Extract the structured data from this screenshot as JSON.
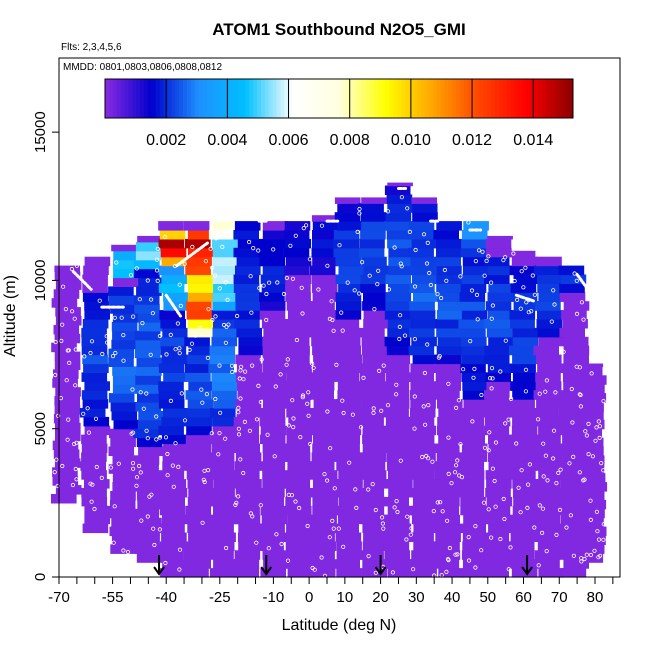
{
  "chart_data": {
    "type": "heatmap",
    "title": "ATOM1 Southbound N2O5_GMI",
    "subtitle_flights": "Flts: 2,3,4,5,6",
    "subtitle_dates": "MMDD: 0801,0803,0806,0808,0812",
    "xlabel": "Latitude (deg N)",
    "ylabel": "Altitude (m)",
    "xlim": [
      -70,
      87
    ],
    "ylim": [
      0,
      17500
    ],
    "x_ticks": [
      -70,
      -55,
      -40,
      -25,
      -10,
      0,
      10,
      20,
      30,
      40,
      50,
      60,
      70,
      80
    ],
    "x_minor_ticks": [
      -65,
      -60,
      -50,
      -45,
      -35,
      -30,
      -20,
      -15,
      -5,
      5,
      15,
      25,
      35,
      45,
      55,
      65,
      75,
      85
    ],
    "y_ticks": [
      0,
      5000,
      10000,
      15000
    ],
    "colorbar": {
      "range": [
        0,
        0.0153
      ],
      "ticks": [
        "0.002",
        "0.004",
        "0.006",
        "0.008",
        "0.010",
        "0.012",
        "0.014"
      ],
      "colors": [
        "#8a2be2",
        "#0000cd",
        "#1e90ff",
        "#00bfff",
        "#ffffff",
        "#ffffe0",
        "#ffff00",
        "#ffa500",
        "#ff4500",
        "#ff0000",
        "#8b0000"
      ]
    },
    "arrows_lat": [
      -42,
      -12,
      20,
      61
    ],
    "columns": [
      {
        "lat": -68,
        "top": 10500,
        "low": 2500,
        "cores": []
      },
      {
        "lat": -60,
        "top": 10800,
        "low": 1500,
        "cores": [
          {
            "y0": 5000,
            "y1": 9500,
            "v": 0.0022
          }
        ]
      },
      {
        "lat": -52,
        "top": 11200,
        "low": 800,
        "cores": [
          {
            "y0": 4800,
            "y1": 9800,
            "v": 0.0025
          },
          {
            "y0": 10000,
            "y1": 10800,
            "v": 0.0055
          }
        ]
      },
      {
        "lat": -45,
        "top": 11500,
        "low": 500,
        "cores": [
          {
            "y0": 4200,
            "y1": 10200,
            "v": 0.0024
          },
          {
            "y0": 10200,
            "y1": 11300,
            "v": 0.0052
          }
        ]
      },
      {
        "lat": -38,
        "top": 12000,
        "low": 0,
        "cores": [
          {
            "y0": 4500,
            "y1": 9000,
            "v": 0.0022
          },
          {
            "y0": 9000,
            "y1": 10300,
            "v": 0.0046
          },
          {
            "y0": 10300,
            "y1": 11500,
            "v": 0.0135
          }
        ]
      },
      {
        "lat": -31,
        "top": 12000,
        "low": 0,
        "cores": [
          {
            "y0": 4600,
            "y1": 8000,
            "v": 0.0022
          },
          {
            "y0": 8000,
            "y1": 9800,
            "v": 0.0116
          },
          {
            "y0": 9800,
            "y1": 11700,
            "v": 0.0142
          }
        ]
      },
      {
        "lat": -24,
        "top": 12000,
        "low": 0,
        "cores": [
          {
            "y0": 5000,
            "y1": 9000,
            "v": 0.0028
          },
          {
            "y0": 9000,
            "y1": 11000,
            "v": 0.0058
          },
          {
            "y0": 11000,
            "y1": 12000,
            "v": 0.0072
          }
        ]
      },
      {
        "lat": -17,
        "top": 12000,
        "low": 0,
        "cores": [
          {
            "y0": 7500,
            "y1": 11800,
            "v": 0.0021
          }
        ]
      },
      {
        "lat": -10,
        "top": 12000,
        "low": 0,
        "cores": [
          {
            "y0": 9000,
            "y1": 11500,
            "v": 0.0018
          }
        ]
      },
      {
        "lat": -3,
        "top": 12000,
        "low": 0,
        "cores": [
          {
            "y0": 10000,
            "y1": 11800,
            "v": 0.0016
          }
        ]
      },
      {
        "lat": 4,
        "top": 12200,
        "low": 0,
        "cores": [
          {
            "y0": 10200,
            "y1": 12000,
            "v": 0.0017
          }
        ]
      },
      {
        "lat": 11,
        "top": 12800,
        "low": 0,
        "cores": [
          {
            "y0": 8500,
            "y1": 12600,
            "v": 0.0021
          }
        ]
      },
      {
        "lat": 18,
        "top": 12800,
        "low": 0,
        "cores": [
          {
            "y0": 9000,
            "y1": 12600,
            "v": 0.0022
          }
        ]
      },
      {
        "lat": 25,
        "top": 13300,
        "low": 0,
        "cores": [
          {
            "y0": 7500,
            "y1": 13000,
            "v": 0.0023
          }
        ]
      },
      {
        "lat": 32,
        "top": 12800,
        "low": 0,
        "cores": [
          {
            "y0": 7000,
            "y1": 12500,
            "v": 0.0024
          }
        ]
      },
      {
        "lat": 39,
        "top": 12000,
        "low": 0,
        "cores": [
          {
            "y0": 7200,
            "y1": 11800,
            "v": 0.0024
          },
          {
            "y0": 11800,
            "y1": 12000,
            "v": 0.0042
          }
        ]
      },
      {
        "lat": 46,
        "top": 12000,
        "low": 0,
        "cores": [
          {
            "y0": 6000,
            "y1": 11800,
            "v": 0.0022
          },
          {
            "y0": 11000,
            "y1": 12000,
            "v": 0.0034
          }
        ]
      },
      {
        "lat": 53,
        "top": 11500,
        "low": 0,
        "cores": [
          {
            "y0": 6500,
            "y1": 10800,
            "v": 0.0023
          }
        ]
      },
      {
        "lat": 60,
        "top": 11000,
        "low": 0,
        "cores": [
          {
            "y0": 6000,
            "y1": 10500,
            "v": 0.0022
          }
        ]
      },
      {
        "lat": 67,
        "top": 10800,
        "low": 0,
        "cores": [
          {
            "y0": 8000,
            "y1": 10500,
            "v": 0.0021
          }
        ]
      },
      {
        "lat": 74,
        "top": 10500,
        "low": 0,
        "cores": [
          {
            "y0": 9500,
            "y1": 10400,
            "v": 0.0019
          }
        ]
      },
      {
        "lat": 79,
        "top": 7200,
        "low": 500,
        "cores": []
      }
    ]
  }
}
